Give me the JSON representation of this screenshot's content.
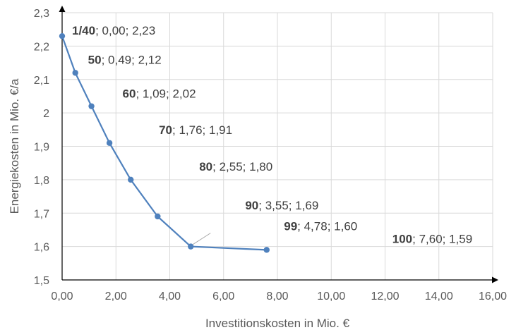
{
  "chart_data": {
    "type": "scatter",
    "title": "",
    "xlabel": "Investitionskosten in Mio. €",
    "ylabel": "Energiekosten in Mio. €/a",
    "xlim": [
      0,
      16
    ],
    "ylim": [
      1.5,
      2.3
    ],
    "x_ticks": [
      "0,00",
      "2,00",
      "4,00",
      "6,00",
      "8,00",
      "10,00",
      "12,00",
      "14,00",
      "16,00"
    ],
    "y_ticks": [
      "1,5",
      "1,6",
      "1,7",
      "1,8",
      "1,9",
      "2",
      "2,1",
      "2,2",
      "2,3"
    ],
    "grid": true,
    "line_color": "#4f81bd",
    "points": [
      {
        "x": 0.0,
        "y": 2.23,
        "name": "1/40",
        "rest": "; 0,00; 2,23"
      },
      {
        "x": 0.49,
        "y": 2.12,
        "name": "50",
        "rest": "; 0,49; 2,12"
      },
      {
        "x": 1.09,
        "y": 2.02,
        "name": "60",
        "rest": "; 1,09; 2,02"
      },
      {
        "x": 1.76,
        "y": 1.91,
        "name": "70",
        "rest": "; 1,76; 1,91"
      },
      {
        "x": 2.55,
        "y": 1.8,
        "name": "80",
        "rest": "; 2,55; 1,80"
      },
      {
        "x": 3.55,
        "y": 1.69,
        "name": "90",
        "rest": "; 3,55; 1,69"
      },
      {
        "x": 4.78,
        "y": 1.6,
        "name": "99",
        "rest": "; 4,78; 1,60"
      },
      {
        "x": 7.6,
        "y": 1.59,
        "name": "100",
        "rest": "; 7,60; 1,59"
      }
    ]
  }
}
